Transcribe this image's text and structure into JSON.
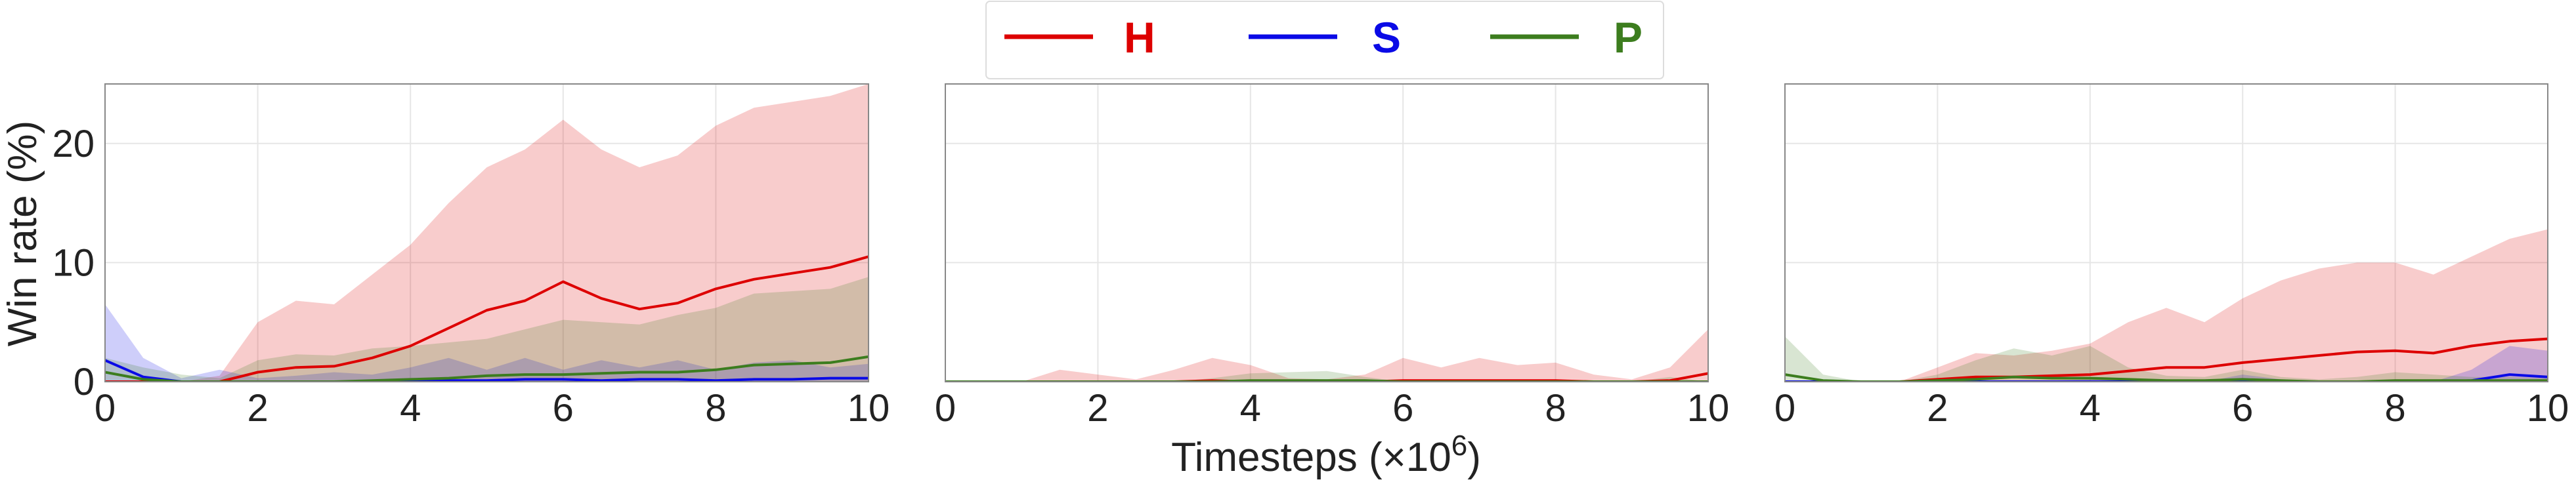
{
  "colors": {
    "H": "#dd0000",
    "S": "#0a0ae6",
    "P": "#3c7d1e",
    "grid": "#e6e6e6",
    "frame": "#888888",
    "text": "#222222"
  },
  "legend": {
    "placement": "top-center",
    "entries": [
      {
        "key": "H",
        "label": "H",
        "color": "#dd0000"
      },
      {
        "key": "S",
        "label": "S",
        "color": "#0a0ae6"
      },
      {
        "key": "P",
        "label": "P",
        "color": "#3c7d1e"
      }
    ]
  },
  "shared": {
    "ylabel": "Win rate (%)",
    "xlabel_prefix": "Timesteps (×10",
    "xlabel_exp": "6",
    "xlabel_suffix": ")",
    "xlim": [
      0,
      10
    ],
    "ylim": [
      0,
      25
    ],
    "xticks": [
      "0",
      "2",
      "4",
      "6",
      "8",
      "10"
    ],
    "yticks": [
      "0",
      "10",
      "20"
    ]
  },
  "chart_data": [
    {
      "type": "line",
      "panel": "left",
      "x": [
        0,
        0.5,
        1,
        1.5,
        2,
        2.5,
        3,
        3.5,
        4,
        4.5,
        5,
        5.5,
        6,
        6.5,
        7,
        7.5,
        8,
        8.5,
        9,
        9.5,
        10
      ],
      "xlim": [
        0,
        10
      ],
      "ylim": [
        0,
        25
      ],
      "grid": true,
      "series": [
        {
          "name": "H",
          "values": [
            0,
            0,
            0,
            0,
            0.8,
            1.2,
            1.3,
            2.0,
            3.0,
            4.5,
            6.0,
            6.8,
            8.4,
            7.0,
            6.1,
            6.6,
            7.8,
            8.6,
            9.1,
            9.6,
            10.5
          ],
          "lower": [
            0,
            0,
            0,
            0,
            0,
            0,
            0,
            0,
            0,
            0,
            0,
            0,
            0,
            0,
            0,
            0,
            0,
            0,
            0,
            0,
            0
          ],
          "upper": [
            0,
            0,
            0,
            0.5,
            5.0,
            6.8,
            6.5,
            9.0,
            11.5,
            15.0,
            18.0,
            19.5,
            22.0,
            19.5,
            18.0,
            19.0,
            21.5,
            23.0,
            23.5,
            24.0,
            25.0
          ]
        },
        {
          "name": "S",
          "values": [
            1.8,
            0.4,
            0,
            0,
            0,
            0,
            0,
            0,
            0,
            0.1,
            0.1,
            0.2,
            0.2,
            0.1,
            0.2,
            0.2,
            0.1,
            0.2,
            0.2,
            0.3,
            0.3
          ],
          "lower": [
            0,
            0,
            0,
            0,
            0,
            0,
            0,
            0,
            0,
            0,
            0,
            0,
            0,
            0,
            0,
            0,
            0,
            0,
            0,
            0,
            0
          ],
          "upper": [
            6.5,
            2.0,
            0.3,
            1.0,
            0.3,
            0.5,
            0.8,
            0.6,
            1.2,
            2.0,
            1.0,
            2.0,
            1.0,
            1.8,
            1.2,
            1.8,
            1.0,
            1.6,
            1.8,
            1.2,
            1.5
          ]
        },
        {
          "name": "P",
          "values": [
            0.8,
            0.2,
            0,
            0,
            0,
            0,
            0,
            0.1,
            0.2,
            0.3,
            0.5,
            0.6,
            0.6,
            0.7,
            0.8,
            0.8,
            1.0,
            1.4,
            1.5,
            1.6,
            2.1
          ],
          "lower": [
            0,
            0,
            0,
            0,
            0,
            0,
            0,
            0,
            0,
            0,
            0,
            0,
            0,
            0,
            0,
            0,
            0,
            0,
            0,
            0,
            0
          ],
          "upper": [
            2.0,
            1.2,
            0.6,
            0.3,
            1.8,
            2.3,
            2.2,
            2.8,
            3.0,
            3.3,
            3.6,
            4.4,
            5.2,
            5.0,
            4.8,
            5.6,
            6.2,
            7.4,
            7.6,
            7.8,
            8.8
          ]
        }
      ]
    },
    {
      "type": "line",
      "panel": "middle",
      "x": [
        0,
        0.5,
        1,
        1.5,
        2,
        2.5,
        3,
        3.5,
        4,
        4.5,
        5,
        5.5,
        6,
        6.5,
        7,
        7.5,
        8,
        8.5,
        9,
        9.5,
        10
      ],
      "xlim": [
        0,
        10
      ],
      "ylim": [
        0,
        25
      ],
      "grid": true,
      "series": [
        {
          "name": "H",
          "values": [
            0,
            0,
            0,
            0,
            0,
            0,
            0,
            0.1,
            0,
            0,
            0,
            0,
            0.1,
            0.1,
            0.1,
            0.1,
            0.1,
            0,
            0,
            0.1,
            0.7
          ],
          "lower": [
            0,
            0,
            0,
            0,
            0,
            0,
            0,
            0,
            0,
            0,
            0,
            0,
            0,
            0,
            0,
            0,
            0,
            0,
            0,
            0,
            0
          ],
          "upper": [
            0,
            0,
            0,
            1.0,
            0.6,
            0.2,
            1.0,
            2.0,
            1.4,
            0.3,
            0.2,
            0.6,
            2.0,
            1.2,
            2.0,
            1.4,
            1.6,
            0.6,
            0.2,
            1.2,
            4.4
          ]
        },
        {
          "name": "S",
          "values": [
            0,
            0,
            0,
            0,
            0,
            0,
            0,
            0,
            0,
            0,
            0,
            0,
            0,
            0,
            0,
            0,
            0,
            0,
            0,
            0,
            0
          ],
          "lower": [
            0,
            0,
            0,
            0,
            0,
            0,
            0,
            0,
            0,
            0,
            0,
            0,
            0,
            0,
            0,
            0,
            0,
            0,
            0,
            0,
            0
          ],
          "upper": [
            0,
            0,
            0,
            0,
            0,
            0,
            0,
            0,
            0,
            0,
            0,
            0,
            0,
            0,
            0,
            0,
            0,
            0,
            0,
            0,
            0
          ]
        },
        {
          "name": "P",
          "values": [
            0,
            0,
            0,
            0,
            0,
            0,
            0,
            0,
            0.1,
            0.1,
            0.1,
            0.1,
            0,
            0,
            0,
            0,
            0,
            0,
            0,
            0,
            0
          ],
          "lower": [
            0,
            0,
            0,
            0,
            0,
            0,
            0,
            0,
            0,
            0,
            0,
            0,
            0,
            0,
            0,
            0,
            0,
            0,
            0,
            0,
            0
          ],
          "upper": [
            0,
            0,
            0,
            0,
            0,
            0,
            0,
            0.3,
            0.7,
            0.8,
            0.9,
            0.4,
            0,
            0,
            0,
            0,
            0,
            0,
            0,
            0.4,
            0
          ]
        }
      ]
    },
    {
      "type": "line",
      "panel": "right",
      "x": [
        0,
        0.5,
        1,
        1.5,
        2,
        2.5,
        3,
        3.5,
        4,
        4.5,
        5,
        5.5,
        6,
        6.5,
        7,
        7.5,
        8,
        8.5,
        9,
        9.5,
        10
      ],
      "xlim": [
        0,
        10
      ],
      "ylim": [
        0,
        25
      ],
      "grid": true,
      "series": [
        {
          "name": "H",
          "values": [
            0,
            0,
            0,
            0,
            0.2,
            0.4,
            0.4,
            0.5,
            0.6,
            0.9,
            1.2,
            1.2,
            1.6,
            1.9,
            2.2,
            2.5,
            2.6,
            2.4,
            3.0,
            3.4,
            3.6
          ],
          "lower": [
            0,
            0,
            0,
            0,
            0,
            0,
            0,
            0,
            0,
            0,
            0,
            0,
            0,
            0,
            0,
            0,
            0,
            0,
            0,
            0,
            0
          ],
          "upper": [
            0,
            0,
            0,
            0,
            1.2,
            2.4,
            2.2,
            2.6,
            3.2,
            5.0,
            6.2,
            5.0,
            7.0,
            8.5,
            9.5,
            10.0,
            10.0,
            9.0,
            10.5,
            12.0,
            12.8
          ]
        },
        {
          "name": "S",
          "values": [
            0,
            0,
            0,
            0,
            0,
            0,
            0,
            0,
            0,
            0,
            0,
            0,
            0,
            0,
            0,
            0,
            0,
            0,
            0.1,
            0.6,
            0.4
          ],
          "lower": [
            0,
            0,
            0,
            0,
            0,
            0,
            0,
            0,
            0,
            0,
            0,
            0,
            0,
            0,
            0,
            0,
            0,
            0,
            0,
            0,
            0
          ],
          "upper": [
            0,
            0,
            0,
            0,
            0,
            0,
            0,
            0.1,
            0.2,
            0.2,
            0,
            0,
            0.6,
            0.2,
            0,
            0,
            0,
            0,
            1.0,
            3.0,
            2.6
          ]
        },
        {
          "name": "P",
          "values": [
            0.6,
            0.1,
            0,
            0,
            0.1,
            0.2,
            0.4,
            0.3,
            0.3,
            0.2,
            0.1,
            0.1,
            0.2,
            0.1,
            0,
            0,
            0.1,
            0.1,
            0.1,
            0.1,
            0.1
          ],
          "lower": [
            0,
            0,
            0,
            0,
            0,
            0,
            0,
            0,
            0,
            0,
            0,
            0,
            0,
            0,
            0,
            0,
            0,
            0,
            0,
            0,
            0
          ],
          "upper": [
            3.8,
            0.6,
            0,
            0,
            0.6,
            1.8,
            2.8,
            2.2,
            3.0,
            1.2,
            0.5,
            0.4,
            1.0,
            0.4,
            0.2,
            0.4,
            0.8,
            0.6,
            0.4,
            0.4,
            0.3
          ]
        }
      ]
    }
  ]
}
